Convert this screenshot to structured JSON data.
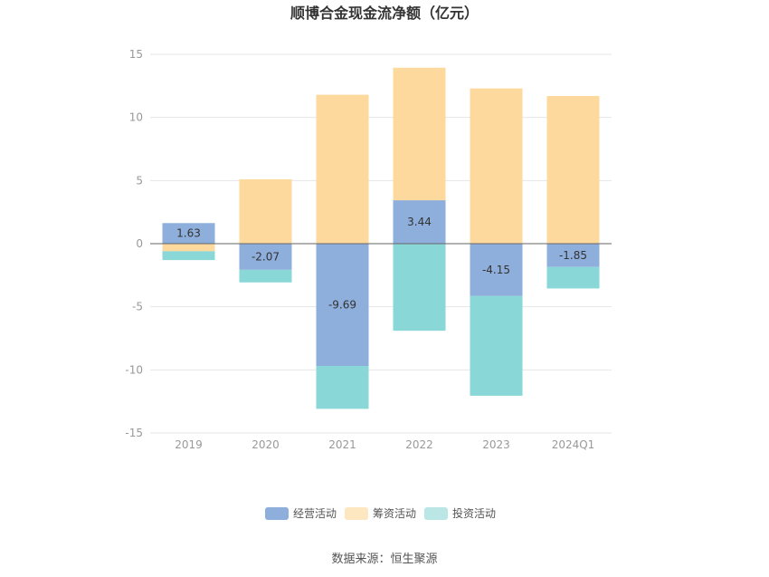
{
  "chart_data": {
    "type": "bar",
    "stacked": true,
    "title": "顺博合金现金流净额（亿元）",
    "categories": [
      "2019",
      "2020",
      "2021",
      "2022",
      "2023",
      "2024Q1"
    ],
    "ylim": [
      -15,
      15
    ],
    "yticks": [
      15,
      10,
      5,
      0,
      -5,
      -10,
      -15
    ],
    "grid": true,
    "legend_position": "bottom",
    "series": [
      {
        "name": "经营活动",
        "color": "#8eaedb",
        "values": [
          1.63,
          -2.07,
          -9.69,
          3.44,
          -4.15,
          -1.85
        ],
        "labels": [
          "1.63",
          "-2.07",
          "-9.69",
          "3.44",
          "-4.15",
          "-1.85"
        ]
      },
      {
        "name": "筹资活动",
        "color": "#fdd99d",
        "values": [
          -0.6,
          5.1,
          11.8,
          10.5,
          12.3,
          11.7
        ]
      },
      {
        "name": "投资活动",
        "color": "#8ad7d8",
        "values": [
          -0.7,
          -1.0,
          -3.4,
          -6.9,
          -7.9,
          -1.7
        ]
      }
    ]
  },
  "source_text": "数据来源：恒生聚源"
}
